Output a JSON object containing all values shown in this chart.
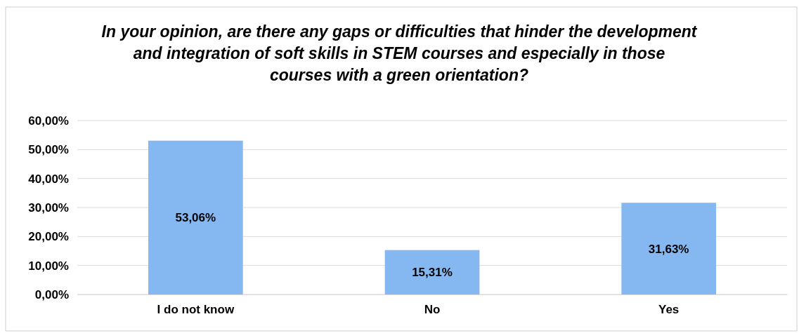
{
  "chart_data": {
    "type": "bar",
    "title": "In your opinion, are there any gaps or difficulties that hinder the development and integration of soft skills in STEM courses and especially in those courses with a green orientation?",
    "categories": [
      "I do not know",
      "No",
      "Yes"
    ],
    "values": [
      53.06,
      15.31,
      31.63
    ],
    "value_labels": [
      "53,06%",
      "15,31%",
      "31,63%"
    ],
    "color": "#85b7f0",
    "ylim": [
      0,
      60
    ],
    "yticks": [
      {
        "value": 0,
        "label": "0,00%"
      },
      {
        "value": 10,
        "label": "10,00%"
      },
      {
        "value": 20,
        "label": "20,00%"
      },
      {
        "value": 30,
        "label": "30,00%"
      },
      {
        "value": 40,
        "label": "40,00%"
      },
      {
        "value": 50,
        "label": "50,00%"
      },
      {
        "value": 60,
        "label": "60,00%"
      }
    ],
    "grid": "y"
  }
}
